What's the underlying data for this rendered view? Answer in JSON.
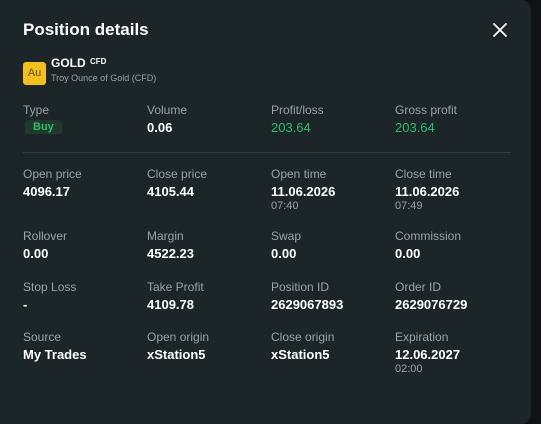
{
  "header": {
    "title": "Position details"
  },
  "instrument": {
    "icon": "Au",
    "symbol": "GOLD",
    "tag": "CFD",
    "description": "Troy Ounce of Gold (CFD)"
  },
  "rows": [
    [
      {
        "label": "Type",
        "value": "Buy"
      },
      {
        "label": "Volume",
        "value": "0.06"
      },
      {
        "label": "Profit/loss",
        "value": "203.64"
      },
      {
        "label": "Gross profit",
        "value": "203.64"
      }
    ],
    [
      {
        "label": "Open price",
        "value": "4096.17"
      },
      {
        "label": "Close price",
        "value": "4105.44"
      },
      {
        "label": "Open time",
        "value": "11.06.2026",
        "time": "07:40"
      },
      {
        "label": "Close time",
        "value": "11.06.2026",
        "time": "07:49"
      }
    ],
    [
      {
        "label": "Rollover",
        "value": "0.00"
      },
      {
        "label": "Margin",
        "value": "4522.23"
      },
      {
        "label": "Swap",
        "value": "0.00"
      },
      {
        "label": "Commission",
        "value": "0.00"
      }
    ],
    [
      {
        "label": "Stop Loss",
        "value": "-"
      },
      {
        "label": "Take Profit",
        "value": "4109.78"
      },
      {
        "label": "Position ID",
        "value": "2629067893"
      },
      {
        "label": "Order ID",
        "value": "2629076729"
      }
    ],
    [
      {
        "label": "Source",
        "value": "My Trades"
      },
      {
        "label": "Open origin",
        "value": "xStation5"
      },
      {
        "label": "Close origin",
        "value": "xStation5"
      },
      {
        "label": "Expiration",
        "value": "12.06.2027",
        "time": "02:00"
      }
    ]
  ]
}
